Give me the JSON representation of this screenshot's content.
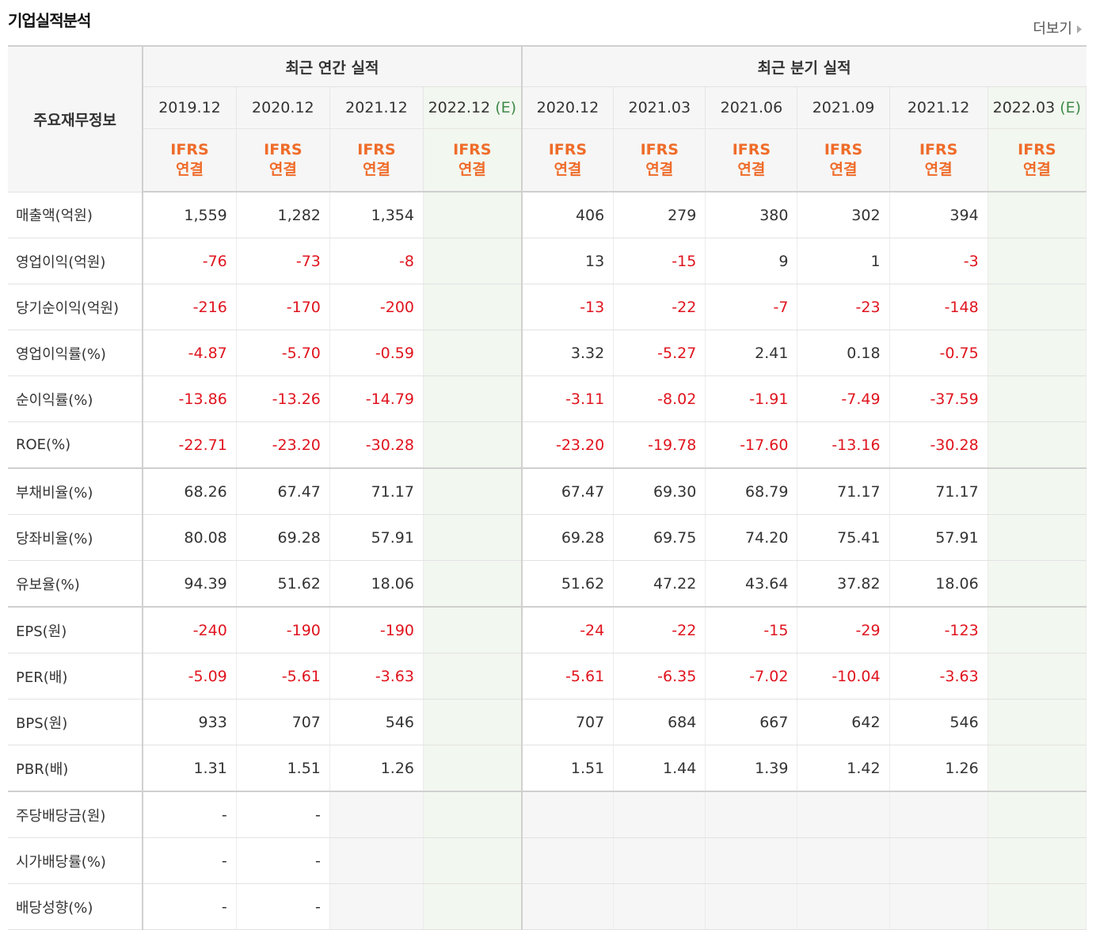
{
  "title": "기업실적분석",
  "more_label": "더보기",
  "colors": {
    "negative": "#e0141e",
    "ifrs": "#ef6c2a",
    "estimate": "#3d8a4a",
    "estimate_bg": "#f2f7ef"
  },
  "header": {
    "corner": "주요재무정보",
    "group_annual": "최근 연간 실적",
    "group_quarter": "최근 분기 실적",
    "periods": [
      "2019.12",
      "2020.12",
      "2021.12",
      "2022.12",
      "2020.12",
      "2021.03",
      "2021.06",
      "2021.09",
      "2021.12",
      "2022.03"
    ],
    "est_suffix": "(E)",
    "ifrs_top": "IFRS",
    "ifrs_bottom": "연결"
  },
  "rows": [
    {
      "label": "매출액(억원)",
      "values": [
        "1,559",
        "1,282",
        "1,354",
        "",
        "406",
        "279",
        "380",
        "302",
        "394",
        ""
      ]
    },
    {
      "label": "영업이익(억원)",
      "values": [
        "-76",
        "-73",
        "-8",
        "",
        "13",
        "-15",
        "9",
        "1",
        "-3",
        ""
      ]
    },
    {
      "label": "당기순이익(억원)",
      "values": [
        "-216",
        "-170",
        "-200",
        "",
        "-13",
        "-22",
        "-7",
        "-23",
        "-148",
        ""
      ]
    },
    {
      "label": "영업이익률(%)",
      "values": [
        "-4.87",
        "-5.70",
        "-0.59",
        "",
        "3.32",
        "-5.27",
        "2.41",
        "0.18",
        "-0.75",
        ""
      ]
    },
    {
      "label": "순이익률(%)",
      "values": [
        "-13.86",
        "-13.26",
        "-14.79",
        "",
        "-3.11",
        "-8.02",
        "-1.91",
        "-7.49",
        "-37.59",
        ""
      ]
    },
    {
      "label": "ROE(%)",
      "values": [
        "-22.71",
        "-23.20",
        "-30.28",
        "",
        "-23.20",
        "-19.78",
        "-17.60",
        "-13.16",
        "-30.28",
        ""
      ]
    },
    {
      "label": "부채비율(%)",
      "values": [
        "68.26",
        "67.47",
        "71.17",
        "",
        "67.47",
        "69.30",
        "68.79",
        "71.17",
        "71.17",
        ""
      ]
    },
    {
      "label": "당좌비율(%)",
      "values": [
        "80.08",
        "69.28",
        "57.91",
        "",
        "69.28",
        "69.75",
        "74.20",
        "75.41",
        "57.91",
        ""
      ]
    },
    {
      "label": "유보율(%)",
      "values": [
        "94.39",
        "51.62",
        "18.06",
        "",
        "51.62",
        "47.22",
        "43.64",
        "37.82",
        "18.06",
        ""
      ]
    },
    {
      "label": "EPS(원)",
      "values": [
        "-240",
        "-190",
        "-190",
        "",
        "-24",
        "-22",
        "-15",
        "-29",
        "-123",
        ""
      ]
    },
    {
      "label": "PER(배)",
      "values": [
        "-5.09",
        "-5.61",
        "-3.63",
        "",
        "-5.61",
        "-6.35",
        "-7.02",
        "-10.04",
        "-3.63",
        ""
      ]
    },
    {
      "label": "BPS(원)",
      "values": [
        "933",
        "707",
        "546",
        "",
        "707",
        "684",
        "667",
        "642",
        "546",
        ""
      ]
    },
    {
      "label": "PBR(배)",
      "values": [
        "1.31",
        "1.51",
        "1.26",
        "",
        "1.51",
        "1.44",
        "1.39",
        "1.42",
        "1.26",
        ""
      ]
    },
    {
      "label": "주당배당금(원)",
      "values": [
        "-",
        "-",
        null,
        null,
        null,
        null,
        null,
        null,
        null,
        null
      ]
    },
    {
      "label": "시가배당률(%)",
      "values": [
        "-",
        "-",
        null,
        null,
        null,
        null,
        null,
        null,
        null,
        null
      ]
    },
    {
      "label": "배당성향(%)",
      "values": [
        "-",
        "-",
        null,
        null,
        null,
        null,
        null,
        null,
        null,
        null
      ]
    }
  ]
}
